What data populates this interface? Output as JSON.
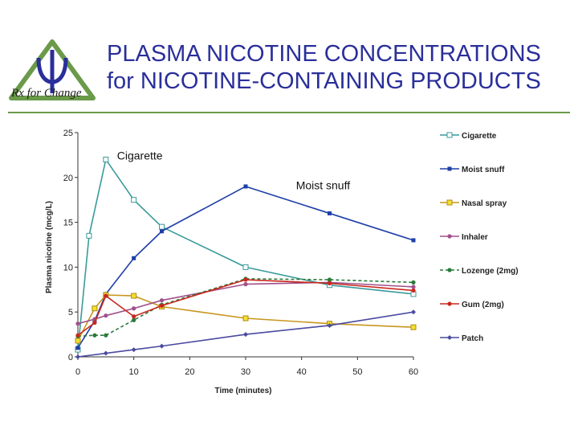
{
  "header": {
    "title_line1": "PLASMA NICOTINE CONCENTRATIONS",
    "title_line2": "for NICOTINE-CONTAINING PRODUCTS",
    "logo_text": "Rx for Change",
    "logo_icon": "psi-triangle-logo",
    "title_color": "#2a2f9a",
    "rule_color": "#6a9a4a"
  },
  "chart_data": {
    "type": "line",
    "title": "",
    "xlabel": "Time (minutes)",
    "ylabel": "Plasma nicotine (mcg/L)",
    "xlim": [
      0,
      60
    ],
    "ylim": [
      0,
      25
    ],
    "xticks": [
      0,
      10,
      20,
      30,
      40,
      50,
      60
    ],
    "yticks": [
      0,
      5,
      10,
      15,
      20,
      25
    ],
    "grid": false,
    "legend_position": "right",
    "annotations": [
      {
        "text": "Cigarette",
        "x": 7,
        "y": 22
      },
      {
        "text": "Moist snuff",
        "x": 39,
        "y": 18.7
      }
    ],
    "series": [
      {
        "name": "Cigarette",
        "color": "#3a9a9a",
        "marker": "square-open",
        "dash": false,
        "x": [
          0,
          2,
          5,
          10,
          15,
          30,
          45,
          60
        ],
        "y": [
          0.8,
          13.5,
          22,
          17.5,
          14.5,
          10,
          8,
          7
        ]
      },
      {
        "name": "Moist snuff",
        "color": "#1f3fa8",
        "marker": "square",
        "dash": false,
        "x": [
          0,
          3,
          5,
          10,
          15,
          30,
          45,
          60
        ],
        "y": [
          1,
          4,
          7,
          11,
          14,
          19,
          16,
          13
        ]
      },
      {
        "name": "Nasal spray",
        "color": "#c8961e",
        "marker": "square-yellow",
        "dash": false,
        "x": [
          0,
          3,
          5,
          10,
          15,
          30,
          45,
          60
        ],
        "y": [
          1.8,
          5.4,
          6.9,
          6.8,
          5.6,
          4.3,
          3.7,
          3.3
        ]
      },
      {
        "name": "Inhaler",
        "color": "#a0508a",
        "marker": "dot",
        "dash": false,
        "x": [
          0,
          3,
          5,
          10,
          15,
          30,
          45,
          60
        ],
        "y": [
          3.7,
          4.2,
          4.6,
          5.4,
          6.3,
          8.1,
          8.3,
          7.8
        ]
      },
      {
        "name": "Lozenge (2mg)",
        "color": "#2a7a3a",
        "marker": "dot",
        "dash": true,
        "x": [
          0,
          3,
          5,
          10,
          15,
          30,
          45,
          60
        ],
        "y": [
          2.3,
          2.4,
          2.4,
          4.1,
          5.8,
          8.7,
          8.6,
          8.3
        ]
      },
      {
        "name": "Gum (2mg)",
        "color": "#c8281e",
        "marker": "dot",
        "dash": false,
        "x": [
          0,
          3,
          5,
          10,
          15,
          30,
          45,
          60
        ],
        "y": [
          2.4,
          3.8,
          6.8,
          4.5,
          5.7,
          8.6,
          8.2,
          7.4
        ]
      },
      {
        "name": "Patch",
        "color": "#4a4aa0",
        "marker": "diamond",
        "dash": false,
        "x": [
          0,
          5,
          10,
          15,
          30,
          45,
          60
        ],
        "y": [
          0,
          0.4,
          0.8,
          1.2,
          2.5,
          3.5,
          5
        ]
      }
    ]
  }
}
